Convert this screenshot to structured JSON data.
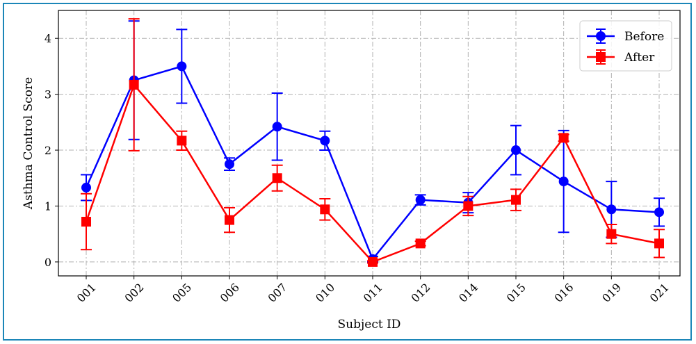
{
  "chart_data": {
    "type": "line",
    "xlabel": "Subject ID",
    "ylabel": "Asthma Control Score",
    "categories": [
      "001",
      "002",
      "005",
      "006",
      "007",
      "010",
      "011",
      "012",
      "014",
      "015",
      "016",
      "019",
      "021"
    ],
    "ylim": [
      -0.25,
      4.5
    ],
    "yticks": [
      0,
      1,
      2,
      3,
      4
    ],
    "grid": true,
    "grid_style": "dash-dot",
    "legend_position": "top-right",
    "series": [
      {
        "name": "Before",
        "color": "#0000ff",
        "marker": "circle",
        "values": [
          1.33,
          3.25,
          3.5,
          1.75,
          2.42,
          2.17,
          0.05,
          1.11,
          1.06,
          2.0,
          1.44,
          0.94,
          0.89
        ],
        "errors": [
          0.23,
          1.06,
          0.66,
          0.11,
          0.6,
          0.17,
          0.05,
          0.09,
          0.18,
          0.44,
          0.91,
          0.5,
          0.25
        ]
      },
      {
        "name": "After",
        "color": "#ff0000",
        "marker": "square",
        "values": [
          0.72,
          3.17,
          2.17,
          0.75,
          1.5,
          0.94,
          0.0,
          0.33,
          1.0,
          1.11,
          2.22,
          0.5,
          0.33
        ],
        "errors": [
          0.5,
          1.18,
          0.17,
          0.22,
          0.23,
          0.19,
          0.02,
          0.04,
          0.17,
          0.19,
          0.06,
          0.17,
          0.25
        ]
      }
    ]
  }
}
